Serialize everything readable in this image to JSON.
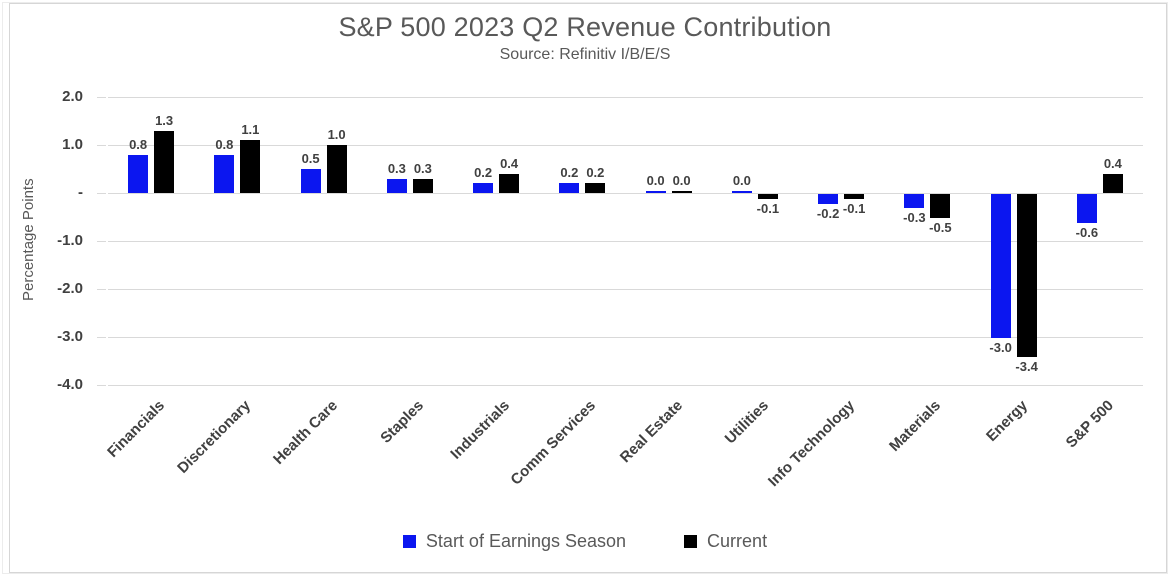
{
  "chart_data": {
    "type": "bar",
    "title": "S&P 500 2023 Q2 Revenue Contribution",
    "subtitle": "Source: Refinitiv I/B/E/S",
    "ylabel": "Percentage Points",
    "xlabel": "",
    "categories": [
      "Financials",
      "Discretionary",
      "Health Care",
      "Staples",
      "Industrials",
      "Comm Services",
      "Real Estate",
      "Utilities",
      "Info Technology",
      "Materials",
      "Energy",
      "S&P 500"
    ],
    "series": [
      {
        "name": "Start of Earnings Season",
        "color": "#0b16f0",
        "values": [
          0.8,
          0.8,
          0.5,
          0.3,
          0.2,
          0.2,
          0.0,
          0.0,
          -0.2,
          -0.3,
          -3.0,
          -0.6
        ]
      },
      {
        "name": "Current",
        "color": "#000000",
        "values": [
          1.3,
          1.1,
          1.0,
          0.3,
          0.4,
          0.2,
          0.0,
          -0.1,
          -0.1,
          -0.5,
          -3.4,
          0.4
        ]
      }
    ],
    "ylim": [
      -4.0,
      2.0
    ],
    "yticks": [
      {
        "value": 2.0,
        "label": "2.0"
      },
      {
        "value": 1.0,
        "label": "1.0"
      },
      {
        "value": 0.0,
        "label": "-"
      },
      {
        "value": -1.0,
        "label": "-1.0"
      },
      {
        "value": -2.0,
        "label": "-2.0"
      },
      {
        "value": -3.0,
        "label": "-3.0"
      },
      {
        "value": -4.0,
        "label": "-4.0"
      }
    ],
    "grid": true,
    "legend_position": "bottom",
    "bar_value_labels": true,
    "colors": {
      "grid": "#d9d9d9",
      "title_text": "#595959",
      "tick_text": "#404040",
      "value_label_text": "#404040",
      "category_text": "#404040",
      "legend_text": "#595959"
    }
  }
}
